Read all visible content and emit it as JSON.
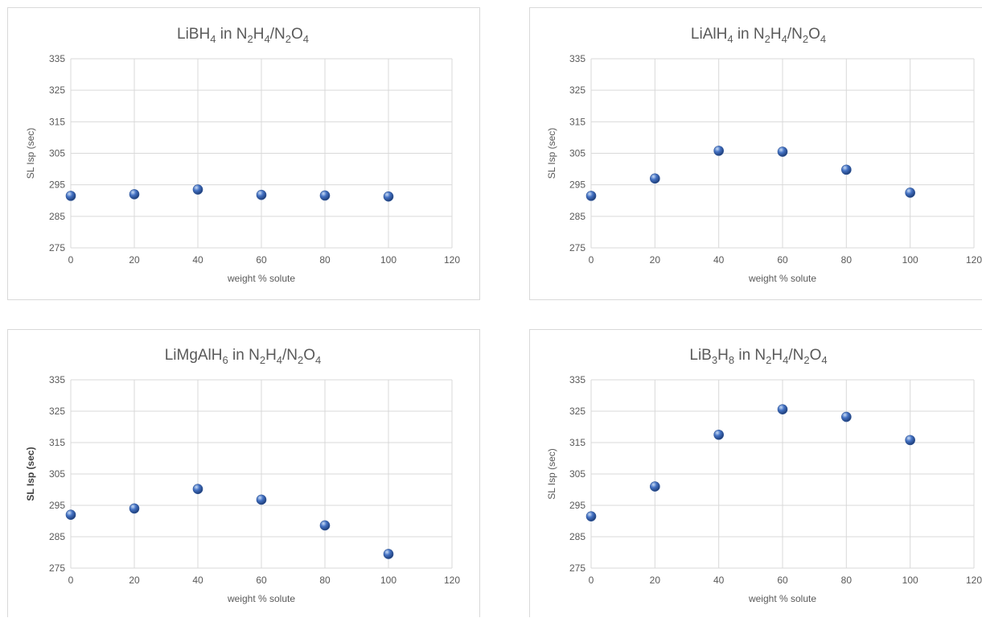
{
  "chart_data": [
    {
      "type": "scatter",
      "title": {
        "main": "LiBH",
        "sub1": "4",
        "mid1": " in N",
        "sub2": "2",
        "mid2": "H",
        "sub3": "4",
        "mid3": "/N",
        "sub4": "2",
        "mid4": "O",
        "sub5": "4"
      },
      "xlabel": "weight % solute",
      "ylabel": "SL Isp (sec)",
      "xlim": [
        0,
        120
      ],
      "ylim": [
        275,
        335
      ],
      "xticks": [
        0,
        20,
        40,
        60,
        80,
        100,
        120
      ],
      "yticks": [
        275,
        285,
        295,
        305,
        315,
        325,
        335
      ],
      "grid": true,
      "x": [
        0,
        20,
        40,
        60,
        80,
        100
      ],
      "y": [
        291.5,
        292,
        293.5,
        291.8,
        291.6,
        291.3
      ]
    },
    {
      "type": "scatter",
      "title": {
        "main": "LiAlH",
        "sub1": "4",
        "mid1": " in N",
        "sub2": "2",
        "mid2": "H",
        "sub3": "4",
        "mid3": "/N",
        "sub4": "2",
        "mid4": "O",
        "sub5": "4"
      },
      "xlabel": "weight % solute",
      "ylabel": "SL Isp (sec)",
      "xlim": [
        0,
        120
      ],
      "ylim": [
        275,
        335
      ],
      "xticks": [
        0,
        20,
        40,
        60,
        80,
        100,
        120
      ],
      "yticks": [
        275,
        285,
        295,
        305,
        315,
        325,
        335
      ],
      "grid": true,
      "x": [
        0,
        20,
        40,
        60,
        80,
        100
      ],
      "y": [
        291.5,
        297,
        305.8,
        305.5,
        299.8,
        292.5
      ]
    },
    {
      "type": "scatter",
      "title": {
        "main": "LiMgAlH",
        "sub1": "6",
        "mid1": " in N",
        "sub2": "2",
        "mid2": "H",
        "sub3": "4",
        "mid3": "/N",
        "sub4": "2",
        "mid4": "O",
        "sub5": "4"
      },
      "xlabel": "weight % solute",
      "ylabel": "SL Isp (sec)",
      "ylabel_bold": true,
      "xlim": [
        0,
        120
      ],
      "ylim": [
        275,
        335
      ],
      "xticks": [
        0,
        20,
        40,
        60,
        80,
        100,
        120
      ],
      "yticks": [
        275,
        285,
        295,
        305,
        315,
        325,
        335
      ],
      "grid": true,
      "x": [
        0,
        20,
        40,
        60,
        80,
        100
      ],
      "y": [
        292,
        294,
        300.2,
        296.8,
        288.6,
        279.5
      ]
    },
    {
      "type": "scatter",
      "title": {
        "main": "LiB",
        "sub1": "3",
        "mid1": "H",
        "sub2": "8",
        "mid2": " in N",
        "sub3": "2",
        "mid3": "H",
        "sub4": "4",
        "mid4": "/N",
        "sub5": "2",
        "tail": "O",
        "sub6": "4"
      },
      "xlabel": "weight % solute",
      "ylabel": "SL Isp (sec)",
      "xlim": [
        0,
        120
      ],
      "ylim": [
        275,
        335
      ],
      "xticks": [
        0,
        20,
        40,
        60,
        80,
        100,
        120
      ],
      "yticks": [
        275,
        285,
        295,
        305,
        315,
        325,
        335
      ],
      "grid": true,
      "x": [
        0,
        20,
        40,
        60,
        80,
        100
      ],
      "y": [
        291.5,
        301,
        317.5,
        325.6,
        323.2,
        315.8
      ]
    }
  ],
  "colors": {
    "marker": "#4472c4",
    "grid": "#d9d9d9",
    "text": "#595959"
  }
}
